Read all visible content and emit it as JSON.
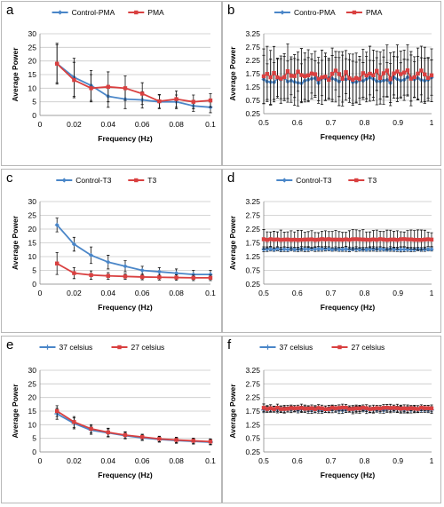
{
  "chart_data": [
    {
      "panel": "a",
      "type": "line",
      "xlabel": "Frequency (Hz)",
      "ylabel": "Average Power",
      "xlim": [
        0,
        0.1
      ],
      "xticks": [
        0,
        0.02,
        0.04,
        0.06,
        0.08,
        0.1
      ],
      "xtick_labels": [
        "0",
        "0.02",
        "0.04",
        "0.06",
        "0.08",
        "0.1"
      ],
      "ylim": [
        0,
        30
      ],
      "yticks": [
        0,
        5,
        10,
        15,
        20,
        25,
        30
      ],
      "ytick_labels": [
        "0",
        "5",
        "10",
        "15",
        "20",
        "25",
        "30"
      ],
      "x": [
        0.01,
        0.02,
        0.03,
        0.04,
        0.05,
        0.06,
        0.07,
        0.08,
        0.09,
        0.1
      ],
      "series": [
        {
          "name": "Control-PMA",
          "color": "#4a86c8",
          "marker": "diamond",
          "values": [
            19,
            14,
            11,
            7,
            6,
            5.7,
            5,
            5,
            3.5,
            3
          ],
          "errors": [
            7.5,
            7,
            5.5,
            4,
            3.5,
            3,
            2.5,
            2.5,
            2,
            2
          ]
        },
        {
          "name": "PMA",
          "color": "#d94040",
          "marker": "square",
          "values": [
            19,
            13,
            10,
            10.5,
            10,
            8,
            5.2,
            6,
            5,
            5.5
          ],
          "errors": [
            7,
            6.5,
            5,
            5.5,
            4.5,
            4,
            2.5,
            3,
            2.5,
            2.5
          ]
        }
      ],
      "legend": "top"
    },
    {
      "panel": "b",
      "type": "line",
      "xlabel": "Frequency (Hz)",
      "ylabel": "Average Power",
      "xlim": [
        0.5,
        1
      ],
      "xticks": [
        0.5,
        0.6,
        0.7,
        0.8,
        0.9,
        1
      ],
      "xtick_labels": [
        "0.5",
        "0.6",
        "0.7",
        "0.8",
        "0.9",
        "1"
      ],
      "ylim": [
        0.25,
        3.25
      ],
      "yticks": [
        0.25,
        0.75,
        1.25,
        1.75,
        2.25,
        2.75,
        3.25
      ],
      "ytick_labels": [
        "0.25",
        "0.75",
        "1.25",
        "1.75",
        "2.25",
        "2.75",
        "3.25"
      ],
      "noisy": true,
      "n_points": 50,
      "series": [
        {
          "name": "Contro-PMA",
          "color": "#4a86c8",
          "marker": "diamond",
          "mean": 1.5,
          "amp": 0.12,
          "err": 0.85,
          "seed": 11
        },
        {
          "name": "PMA",
          "color": "#d94040",
          "marker": "square",
          "mean": 1.7,
          "amp": 0.18,
          "err": 0.95,
          "seed": 29
        }
      ],
      "legend": "top"
    },
    {
      "panel": "c",
      "type": "line",
      "xlabel": "Frequency (Hz)",
      "ylabel": "Average Power",
      "xlim": [
        0,
        0.1
      ],
      "xticks": [
        0,
        0.02,
        0.04,
        0.06,
        0.08,
        0.1
      ],
      "xtick_labels": [
        "0",
        "0.02",
        "0.04",
        "0.06",
        "0.08",
        "0.1"
      ],
      "ylim": [
        0,
        30
      ],
      "yticks": [
        0,
        5,
        10,
        15,
        20,
        25,
        30
      ],
      "ytick_labels": [
        "0",
        "5",
        "10",
        "15",
        "20",
        "25",
        "30"
      ],
      "x": [
        0.01,
        0.02,
        0.03,
        0.04,
        0.05,
        0.06,
        0.07,
        0.08,
        0.09,
        0.1
      ],
      "series": [
        {
          "name": "Control-T3",
          "color": "#4a86c8",
          "marker": "diamond",
          "values": [
            21.5,
            14.5,
            10.5,
            8,
            6.5,
            5,
            4.5,
            4,
            3.5,
            3.5
          ],
          "errors": [
            2.5,
            2.5,
            3,
            2.5,
            2,
            1.5,
            1.5,
            1.5,
            1.5,
            1.5
          ]
        },
        {
          "name": "T3",
          "color": "#d94040",
          "marker": "square",
          "values": [
            7.5,
            4,
            3.3,
            3,
            2.8,
            2.6,
            2.5,
            2.4,
            2.3,
            2.3
          ],
          "errors": [
            4,
            2,
            1.5,
            1.2,
            1,
            1,
            1,
            1,
            1,
            1
          ]
        }
      ],
      "legend": "top"
    },
    {
      "panel": "d",
      "type": "line",
      "xlabel": "Frequency (Hz)",
      "ylabel": "Average Power",
      "xlim": [
        0.5,
        1
      ],
      "xticks": [
        0.5,
        0.6,
        0.7,
        0.8,
        0.9,
        1
      ],
      "xtick_labels": [
        "0.5",
        "0.6",
        "0.7",
        "0.8",
        "0.9",
        "1"
      ],
      "ylim": [
        0.25,
        3.25
      ],
      "yticks": [
        0.25,
        0.75,
        1.25,
        1.75,
        2.25,
        2.75,
        3.25
      ],
      "ytick_labels": [
        "0.25",
        "0.75",
        "1.25",
        "1.75",
        "2.25",
        "2.75",
        "3.25"
      ],
      "noisy": true,
      "n_points": 50,
      "series": [
        {
          "name": "Control-T3",
          "color": "#4a86c8",
          "marker": "diamond",
          "mean": 1.52,
          "amp": 0.015,
          "err": 0.08,
          "seed": 5
        },
        {
          "name": "T3",
          "color": "#d94040",
          "marker": "square",
          "mean": 1.87,
          "amp": 0.015,
          "err": 0.33,
          "seed": 17
        }
      ],
      "legend": "top"
    },
    {
      "panel": "e",
      "type": "line",
      "xlabel": "Frequency (Hz)",
      "ylabel": "Average Power",
      "xlim": [
        0,
        0.1
      ],
      "xticks": [
        0,
        0.02,
        0.04,
        0.06,
        0.08,
        0.1
      ],
      "xtick_labels": [
        "0",
        "0.02",
        "0.04",
        "0.06",
        "0.08",
        "0.1"
      ],
      "ylim": [
        0,
        30
      ],
      "yticks": [
        0,
        5,
        10,
        15,
        20,
        25,
        30
      ],
      "ytick_labels": [
        "0",
        "5",
        "10",
        "15",
        "20",
        "25",
        "30"
      ],
      "x": [
        0.01,
        0.02,
        0.03,
        0.04,
        0.05,
        0.06,
        0.07,
        0.08,
        0.09,
        0.1
      ],
      "series": [
        {
          "name": "37 celsius",
          "color": "#4a86c8",
          "marker": "plus",
          "values": [
            14,
            10.5,
            8,
            7,
            6,
            5.2,
            4.6,
            4.2,
            3.9,
            3.6
          ],
          "errors": [
            2,
            2,
            1.5,
            1.5,
            1.2,
            1,
            1,
            1,
            1,
            1
          ]
        },
        {
          "name": "27 celsius",
          "color": "#d94040",
          "marker": "square",
          "values": [
            15,
            11,
            8.5,
            7.2,
            6.2,
            5.5,
            4.8,
            4.4,
            4.1,
            3.8
          ],
          "errors": [
            2,
            2,
            1.5,
            1.5,
            1.2,
            1,
            1,
            1,
            1,
            1
          ]
        }
      ],
      "legend": "top"
    },
    {
      "panel": "f",
      "type": "line",
      "xlabel": "Frequency (Hz)",
      "ylabel": "Average Power",
      "xlim": [
        0.5,
        1
      ],
      "xticks": [
        0.5,
        0.6,
        0.7,
        0.8,
        0.9,
        1
      ],
      "xtick_labels": [
        "0.5",
        "0.6",
        "0.7",
        "0.8",
        "0.9",
        "1"
      ],
      "ylim": [
        0.25,
        3.25
      ],
      "yticks": [
        0.25,
        0.75,
        1.25,
        1.75,
        2.25,
        2.75,
        3.25
      ],
      "ytick_labels": [
        "0.25",
        "0.75",
        "1.25",
        "1.75",
        "2.25",
        "2.75",
        "3.25"
      ],
      "noisy": true,
      "n_points": 50,
      "series": [
        {
          "name": "37 celsius",
          "color": "#4a86c8",
          "marker": "plus",
          "mean": 1.8,
          "amp": 0.02,
          "err": 0.12,
          "seed": 3
        },
        {
          "name": "27 celsius",
          "color": "#d94040",
          "marker": "square",
          "mean": 1.85,
          "amp": 0.03,
          "err": 0.13,
          "seed": 41
        }
      ],
      "legend": "top"
    }
  ]
}
